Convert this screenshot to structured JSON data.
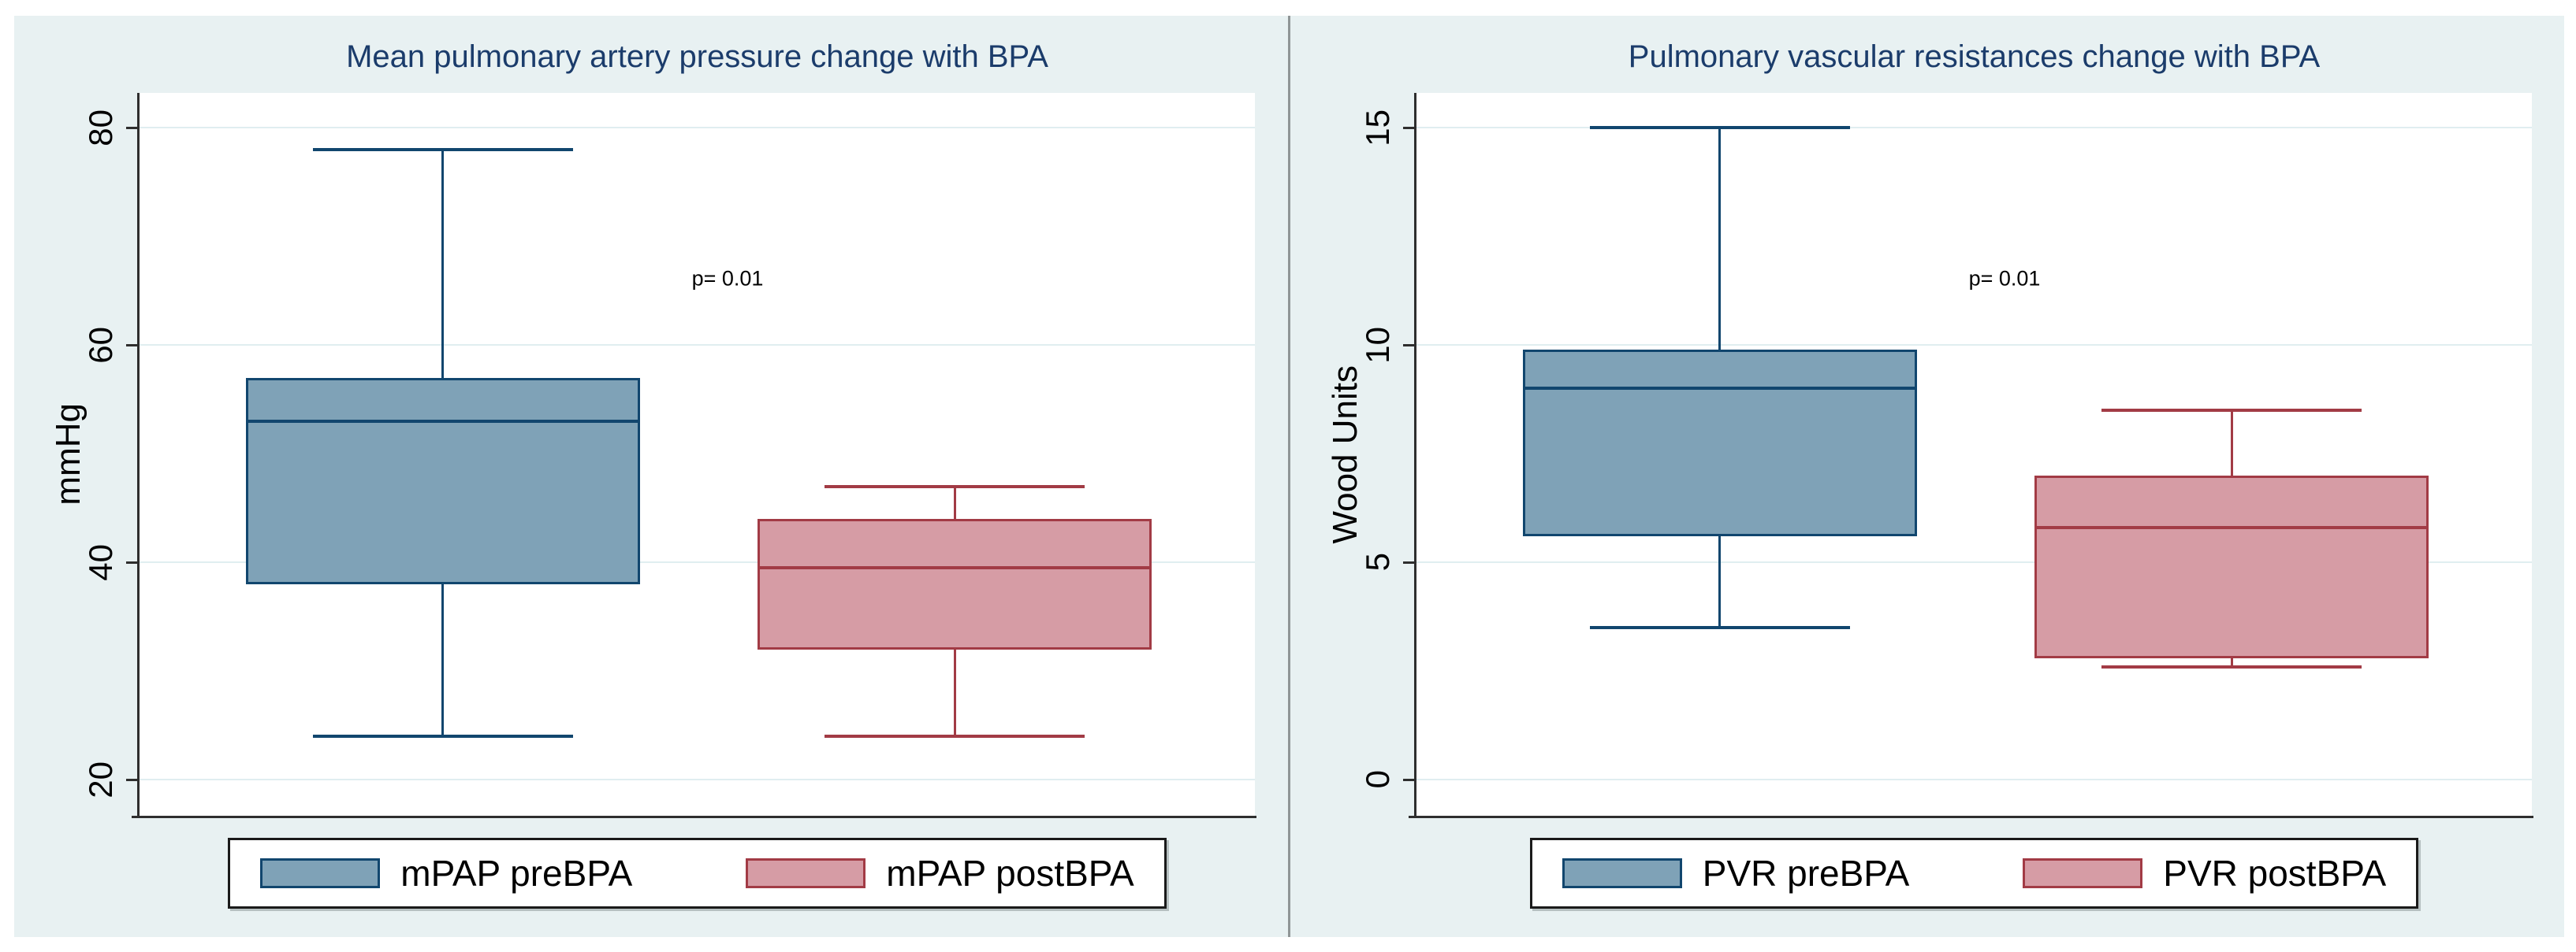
{
  "colors": {
    "background": "#E8F1F2",
    "plot_background": "#FFFFFF",
    "gridline": "#E0EEF0",
    "axis": "#2E2E2E",
    "title_text": "#1B3C6B",
    "annotation_text": "#000000",
    "pre_fill": "#7FA2B7",
    "pre_stroke": "#11466E",
    "post_fill": "#D69CA5",
    "post_stroke": "#A23B45",
    "legend_border": "#1A1A1A",
    "panel_divider": "#8F9596"
  },
  "chart_data": [
    {
      "type": "box",
      "title": "Mean pulmonary artery pressure change with BPA",
      "ylabel": "mmHg",
      "yticks": [
        20,
        40,
        60,
        80
      ],
      "ylim": [
        16.7,
        83.2
      ],
      "grid": true,
      "annotation": "p= 0.01",
      "legend_position": "bottom",
      "legend": [
        "mPAP preBPA",
        "mPAP postBPA"
      ],
      "series": [
        {
          "name": "mPAP preBPA",
          "whisker_low": 24,
          "q1": 38,
          "median": 53,
          "q3": 57,
          "whisker_high": 78
        },
        {
          "name": "mPAP postBPA",
          "whisker_low": 24,
          "q1": 32,
          "median": 39.5,
          "q3": 44,
          "whisker_high": 47
        }
      ]
    },
    {
      "type": "box",
      "title": "Pulmonary vascular resistances change with BPA",
      "ylabel": "Wood Units",
      "yticks": [
        0,
        5,
        10,
        15
      ],
      "ylim": [
        -0.83,
        15.8
      ],
      "grid": true,
      "annotation": "p= 0.01",
      "legend_position": "bottom",
      "legend": [
        "PVR preBPA",
        "PVR postBPA"
      ],
      "series": [
        {
          "name": "PVR preBPA",
          "whisker_low": 3.5,
          "q1": 5.6,
          "median": 9,
          "q3": 9.9,
          "whisker_high": 15
        },
        {
          "name": "PVR postBPA",
          "whisker_low": 2.6,
          "q1": 2.8,
          "median": 5.8,
          "q3": 7,
          "whisker_high": 8.5
        }
      ]
    }
  ]
}
